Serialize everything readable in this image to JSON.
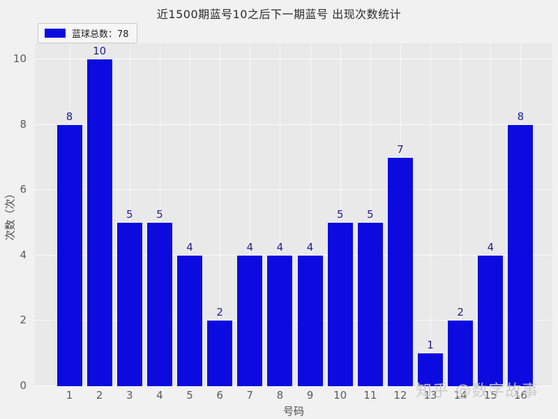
{
  "chart_data": {
    "type": "bar",
    "title": "近1500期蓝号10之后下一期蓝号 出现次数统计",
    "categories": [
      "1",
      "2",
      "3",
      "4",
      "5",
      "6",
      "7",
      "8",
      "9",
      "10",
      "11",
      "12",
      "13",
      "14",
      "15",
      "16"
    ],
    "values": [
      8,
      10,
      5,
      5,
      4,
      2,
      4,
      4,
      4,
      5,
      5,
      7,
      1,
      2,
      4,
      8
    ],
    "xlabel": "号码",
    "ylabel": "次数（次）",
    "yticks": [
      0,
      2,
      4,
      6,
      8,
      10
    ],
    "ylim": [
      0,
      10.5
    ],
    "grid": true,
    "legend": {
      "label": "蓝球总数：78",
      "position": "upper-left"
    },
    "colors": {
      "bar": "#0b0be0",
      "value_label": "#1e1e8c",
      "plot_background": "#e9e9e9",
      "figure_background": "#f1f1f1",
      "gridline": "#fbfbfb"
    }
  },
  "watermark": "知乎 @数字故事"
}
